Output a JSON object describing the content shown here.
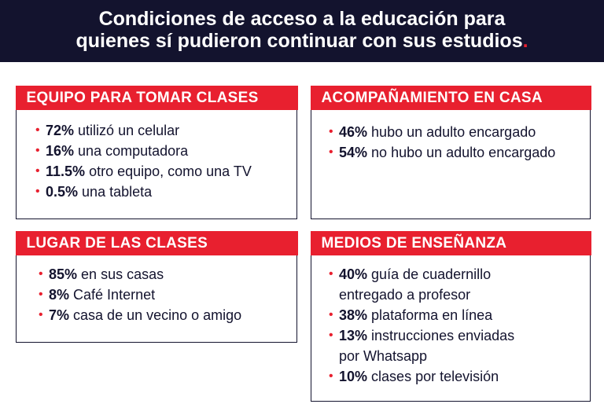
{
  "header": {
    "line1": "Condiciones de acceso a la educación para",
    "line2": "quienes sí pudieron continuar con sus estudios",
    "dot": "."
  },
  "colors": {
    "navy": "#13132e",
    "accent": "#e8202f"
  },
  "cards": {
    "equipo": {
      "title": "EQUIPO PARA TOMAR CLASES",
      "items": [
        {
          "pct": "72%",
          "text": "utilizó un celular"
        },
        {
          "pct": "16%",
          "text": "una computadora"
        },
        {
          "pct": "11.5%",
          "text": "otro equipo, como una TV"
        },
        {
          "pct": "0.5%",
          "text": "una tableta"
        }
      ]
    },
    "acompanamiento": {
      "title": "ACOMPAÑAMIENTO EN CASA",
      "items": [
        {
          "pct": "46%",
          "text": "hubo un adulto encargado"
        },
        {
          "pct": "54%",
          "text": "no hubo un adulto encargado"
        }
      ]
    },
    "lugar": {
      "title": "LUGAR DE LAS CLASES",
      "items": [
        {
          "pct": "85%",
          "text": "en sus casas"
        },
        {
          "pct": "8%",
          "text": "Café Internet"
        },
        {
          "pct": "7%",
          "text": "casa de un vecino o amigo"
        }
      ]
    },
    "medios": {
      "title": "MEDIOS DE ENSEÑANZA",
      "items": [
        {
          "pct": "40%",
          "text": "guía de cuadernillo",
          "cont": "entregado a profesor"
        },
        {
          "pct": "38%",
          "text": "plataforma en línea"
        },
        {
          "pct": "13%",
          "text": "instrucciones enviadas",
          "cont": "por Whatsapp"
        },
        {
          "pct": "10%",
          "text": "clases por televisión"
        }
      ]
    }
  }
}
